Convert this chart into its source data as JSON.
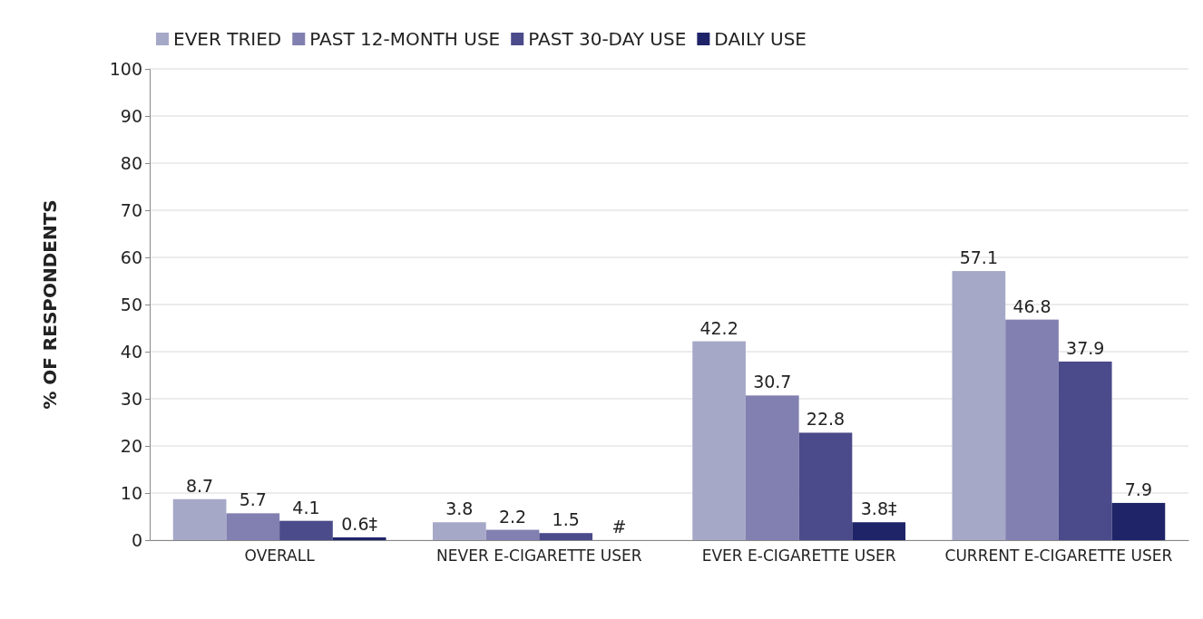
{
  "chart_data": {
    "type": "bar",
    "ylabel": "% OF RESPONDENTS",
    "categories": [
      "OVERALL",
      "NEVER E-CIGARETTE USER",
      "EVER E-CIGARETTE USER",
      "CURRENT E-CIGARETTE USER"
    ],
    "series": [
      {
        "name": "EVER TRIED",
        "color": "#a6a8c8",
        "values": [
          8.7,
          3.8,
          42.2,
          57.1
        ],
        "value_labels": [
          "8.7",
          "3.8",
          "42.2",
          "57.1"
        ]
      },
      {
        "name": "PAST 12-MONTH USE",
        "color": "#8280b0",
        "values": [
          5.7,
          2.2,
          30.7,
          46.8
        ],
        "value_labels": [
          "5.7",
          "2.2",
          "30.7",
          "46.8"
        ]
      },
      {
        "name": "PAST 30-DAY USE",
        "color": "#4b4a8a",
        "values": [
          4.1,
          1.5,
          22.8,
          37.9
        ],
        "value_labels": [
          "4.1",
          "1.5",
          "22.8",
          "37.9"
        ]
      },
      {
        "name": "DAILY USE",
        "color": "#1f2468",
        "values": [
          0.6,
          null,
          3.8,
          7.9
        ],
        "value_labels": [
          "0.6‡",
          "#",
          "3.8‡",
          "7.9"
        ]
      }
    ],
    "ylim": [
      0,
      100
    ],
    "yticks": [
      0,
      10,
      20,
      30,
      40,
      50,
      60,
      70,
      80,
      90,
      100
    ],
    "grid": "y",
    "legend": "top left"
  }
}
